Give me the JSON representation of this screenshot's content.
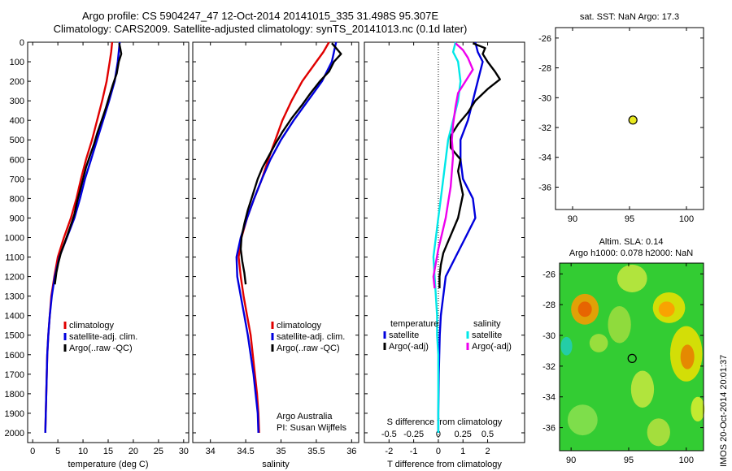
{
  "header": {
    "title_line1": "Argo profile: CS 5904247_47 12-Oct-2014 20141015_335 31.498S 95.307E",
    "title_line2": "Climatology: CARS2009. Satellite-adjusted climatology: synTS_20141013.nc (0.1d later)"
  },
  "side_label": "IMOS 20-Oct-2014 20:01:37",
  "colors": {
    "climatology": "#e00000",
    "satellite": "#0000dd",
    "argo": "#000000",
    "cyan": "#00e8e8",
    "magenta": "#ee00ee",
    "marker": "#e8e820"
  },
  "chart_data": [
    {
      "id": "temperature",
      "type": "line",
      "xlabel": "temperature (deg C)",
      "ylabel": "",
      "xlim": [
        -1,
        31
      ],
      "ylim": [
        2050,
        0
      ],
      "xticks": [
        0,
        5,
        10,
        15,
        20,
        25,
        30
      ],
      "yticks": [
        0,
        100,
        200,
        300,
        400,
        500,
        600,
        700,
        800,
        900,
        1000,
        1100,
        1200,
        1300,
        1400,
        1500,
        1600,
        1700,
        1800,
        1900,
        2000
      ],
      "legend": [
        "climatology",
        "satellite-adj. clim.",
        "Argo(..raw -QC)"
      ],
      "legend_position": "lower-center",
      "series": [
        {
          "name": "climatology",
          "color": "#e00000",
          "points": [
            [
              15.8,
              0
            ],
            [
              15.6,
              50
            ],
            [
              15.3,
              100
            ],
            [
              14.7,
              200
            ],
            [
              13.8,
              300
            ],
            [
              12.8,
              400
            ],
            [
              11.8,
              500
            ],
            [
              10.6,
              600
            ],
            [
              9.6,
              700
            ],
            [
              8.7,
              800
            ],
            [
              7.6,
              900
            ],
            [
              6.2,
              1000
            ],
            [
              5.0,
              1100
            ],
            [
              4.3,
              1200
            ],
            [
              3.7,
              1300
            ],
            [
              3.4,
              1400
            ],
            [
              3.1,
              1500
            ],
            [
              2.9,
              1600
            ],
            [
              2.8,
              1700
            ],
            [
              2.7,
              1800
            ],
            [
              2.6,
              1900
            ],
            [
              2.5,
              2000
            ]
          ]
        },
        {
          "name": "satellite-adj. clim.",
          "color": "#0000dd",
          "points": [
            [
              17.3,
              0
            ],
            [
              17.1,
              50
            ],
            [
              16.9,
              100
            ],
            [
              16.3,
              200
            ],
            [
              15.2,
              300
            ],
            [
              14.0,
              400
            ],
            [
              12.8,
              500
            ],
            [
              11.6,
              600
            ],
            [
              10.4,
              700
            ],
            [
              9.4,
              800
            ],
            [
              8.3,
              900
            ],
            [
              6.8,
              1000
            ],
            [
              5.3,
              1100
            ],
            [
              4.4,
              1200
            ],
            [
              3.8,
              1300
            ],
            [
              3.4,
              1400
            ],
            [
              3.1,
              1500
            ],
            [
              2.9,
              1600
            ],
            [
              2.8,
              1700
            ],
            [
              2.7,
              1800
            ],
            [
              2.6,
              1900
            ],
            [
              2.5,
              2000
            ]
          ]
        },
        {
          "name": "Argo(..raw -QC)",
          "color": "#000000",
          "points": [
            [
              17.2,
              5
            ],
            [
              17.4,
              30
            ],
            [
              17.6,
              60
            ],
            [
              17.1,
              100
            ],
            [
              16.7,
              160
            ],
            [
              15.9,
              220
            ],
            [
              15.2,
              280
            ],
            [
              14.5,
              340
            ],
            [
              13.7,
              400
            ],
            [
              12.9,
              460
            ],
            [
              12.2,
              520
            ],
            [
              11.4,
              580
            ],
            [
              10.6,
              640
            ],
            [
              10.0,
              700
            ],
            [
              9.4,
              760
            ],
            [
              8.8,
              820
            ],
            [
              8.3,
              880
            ],
            [
              7.8,
              920
            ],
            [
              7.0,
              980
            ],
            [
              6.3,
              1030
            ],
            [
              5.6,
              1080
            ],
            [
              5.1,
              1130
            ],
            [
              4.7,
              1180
            ],
            [
              4.4,
              1240
            ]
          ]
        }
      ]
    },
    {
      "id": "salinity",
      "type": "line",
      "xlabel": "salinity",
      "ylabel": "",
      "xlim": [
        33.75,
        36.1
      ],
      "ylim": [
        2050,
        0
      ],
      "xticks": [
        34,
        34.5,
        35,
        35.5,
        36
      ],
      "yticks": [
        0,
        100,
        200,
        300,
        400,
        500,
        600,
        700,
        800,
        900,
        1000,
        1100,
        1200,
        1300,
        1400,
        1500,
        1600,
        1700,
        1800,
        1900,
        2000
      ],
      "legend": [
        "climatology",
        "satellite-adj. clim.",
        "Argo(..raw -QC)"
      ],
      "legend_position": "lower-center",
      "annotation": [
        "Argo Australia",
        "PI: Susan Wijffels"
      ],
      "series": [
        {
          "name": "climatology",
          "color": "#e00000",
          "points": [
            [
              35.68,
              0
            ],
            [
              35.6,
              50
            ],
            [
              35.5,
              100
            ],
            [
              35.3,
              200
            ],
            [
              35.15,
              300
            ],
            [
              35.02,
              400
            ],
            [
              34.92,
              500
            ],
            [
              34.82,
              600
            ],
            [
              34.73,
              700
            ],
            [
              34.62,
              800
            ],
            [
              34.52,
              900
            ],
            [
              34.44,
              1000
            ],
            [
              34.4,
              1100
            ],
            [
              34.43,
              1200
            ],
            [
              34.47,
              1300
            ],
            [
              34.52,
              1400
            ],
            [
              34.57,
              1500
            ],
            [
              34.6,
              1600
            ],
            [
              34.63,
              1700
            ],
            [
              34.66,
              1800
            ],
            [
              34.68,
              1900
            ],
            [
              34.69,
              2000
            ]
          ]
        },
        {
          "name": "satellite-adj. clim.",
          "color": "#0000dd",
          "points": [
            [
              35.78,
              0
            ],
            [
              35.75,
              50
            ],
            [
              35.72,
              100
            ],
            [
              35.58,
              200
            ],
            [
              35.38,
              300
            ],
            [
              35.18,
              400
            ],
            [
              35.0,
              500
            ],
            [
              34.85,
              600
            ],
            [
              34.73,
              700
            ],
            [
              34.62,
              800
            ],
            [
              34.52,
              900
            ],
            [
              34.43,
              1000
            ],
            [
              34.37,
              1100
            ],
            [
              34.38,
              1200
            ],
            [
              34.43,
              1300
            ],
            [
              34.48,
              1400
            ],
            [
              34.53,
              1500
            ],
            [
              34.57,
              1600
            ],
            [
              34.61,
              1700
            ],
            [
              34.64,
              1800
            ],
            [
              34.67,
              1900
            ],
            [
              34.68,
              2000
            ]
          ]
        },
        {
          "name": "Argo(..raw -QC)",
          "color": "#000000",
          "points": [
            [
              35.72,
              5
            ],
            [
              35.78,
              30
            ],
            [
              35.85,
              60
            ],
            [
              35.75,
              100
            ],
            [
              35.68,
              150
            ],
            [
              35.55,
              200
            ],
            [
              35.42,
              260
            ],
            [
              35.3,
              320
            ],
            [
              35.15,
              390
            ],
            [
              35.02,
              460
            ],
            [
              34.92,
              520
            ],
            [
              34.83,
              580
            ],
            [
              34.74,
              640
            ],
            [
              34.67,
              700
            ],
            [
              34.6,
              780
            ],
            [
              34.53,
              860
            ],
            [
              34.48,
              930
            ],
            [
              34.44,
              1000
            ],
            [
              34.43,
              1060
            ],
            [
              34.45,
              1120
            ],
            [
              34.48,
              1180
            ],
            [
              34.5,
              1240
            ]
          ]
        }
      ]
    },
    {
      "id": "difference",
      "type": "line",
      "xlabel": "T difference from climatology",
      "xlabel_top": "S difference from climatology",
      "xlim": [
        -3,
        3.5
      ],
      "ylim": [
        2050,
        0
      ],
      "xticks": [
        -2,
        -1,
        0,
        1,
        2
      ],
      "xticks_s": [
        -0.5,
        -0.25,
        0,
        0.25,
        0.5
      ],
      "yticks": [
        0,
        100,
        200,
        300,
        400,
        500,
        600,
        700,
        800,
        900,
        1000,
        1100,
        1200,
        1300,
        1400,
        1500,
        1600,
        1700,
        1800,
        1900,
        2000
      ],
      "legend_headers": [
        "temperature",
        "salinity"
      ],
      "legend": [
        "satellite",
        "Argo(-adj)",
        "satellite",
        "Argo(-adj)"
      ],
      "series": [
        {
          "name": "satellite",
          "group": "temperature",
          "color": "#0000dd",
          "points": [
            [
              1.5,
              0
            ],
            [
              1.6,
              50
            ],
            [
              1.8,
              100
            ],
            [
              1.6,
              200
            ],
            [
              1.4,
              300
            ],
            [
              1.2,
              400
            ],
            [
              0.9,
              500
            ],
            [
              0.9,
              600
            ],
            [
              1.0,
              700
            ],
            [
              1.4,
              800
            ],
            [
              1.5,
              900
            ],
            [
              1.1,
              1000
            ],
            [
              0.7,
              1100
            ],
            [
              0.3,
              1200
            ],
            [
              0.2,
              1300
            ],
            [
              0.1,
              1400
            ],
            [
              0.06,
              1500
            ],
            [
              0.04,
              1600
            ],
            [
              0.02,
              1700
            ],
            [
              0.01,
              1800
            ],
            [
              0.0,
              1900
            ],
            [
              0.0,
              2000
            ]
          ]
        },
        {
          "name": "Argo(-adj)",
          "group": "temperature",
          "color": "#000000",
          "points": [
            [
              1.4,
              5
            ],
            [
              1.9,
              30
            ],
            [
              1.8,
              60
            ],
            [
              2.0,
              100
            ],
            [
              2.3,
              150
            ],
            [
              2.5,
              190
            ],
            [
              2.0,
              240
            ],
            [
              1.5,
              300
            ],
            [
              1.2,
              360
            ],
            [
              0.8,
              420
            ],
            [
              0.5,
              480
            ],
            [
              0.5,
              540
            ],
            [
              0.9,
              600
            ],
            [
              0.8,
              660
            ],
            [
              0.9,
              720
            ],
            [
              1.0,
              780
            ],
            [
              0.9,
              840
            ],
            [
              0.8,
              900
            ],
            [
              0.6,
              960
            ],
            [
              0.4,
              1020
            ],
            [
              0.2,
              1080
            ],
            [
              0.1,
              1140
            ],
            [
              0.05,
              1200
            ],
            [
              0.05,
              1260
            ]
          ]
        },
        {
          "name": "satellite",
          "group": "salinity",
          "color": "#00e8e8",
          "points": [
            [
              0.7,
              0
            ],
            [
              0.6,
              50
            ],
            [
              0.8,
              100
            ],
            [
              0.9,
              200
            ],
            [
              0.8,
              300
            ],
            [
              0.6,
              400
            ],
            [
              0.4,
              500
            ],
            [
              0.3,
              600
            ],
            [
              0.2,
              700
            ],
            [
              0.1,
              800
            ],
            [
              0.0,
              900
            ],
            [
              -0.1,
              1000
            ],
            [
              -0.2,
              1100
            ],
            [
              -0.15,
              1200
            ],
            [
              -0.1,
              1300
            ],
            [
              -0.05,
              1400
            ],
            [
              -0.05,
              1500
            ],
            [
              0.0,
              1600
            ],
            [
              0.0,
              1700
            ],
            [
              0.0,
              1800
            ],
            [
              0.0,
              1900
            ],
            [
              0.0,
              2000
            ]
          ]
        },
        {
          "name": "Argo(-adj)",
          "group": "salinity",
          "color": "#ee00ee",
          "points": [
            [
              0.7,
              5
            ],
            [
              1.0,
              40
            ],
            [
              1.2,
              80
            ],
            [
              1.4,
              140
            ],
            [
              1.1,
              200
            ],
            [
              0.8,
              260
            ],
            [
              0.7,
              330
            ],
            [
              0.6,
              420
            ],
            [
              0.55,
              500
            ],
            [
              0.6,
              580
            ],
            [
              0.55,
              660
            ],
            [
              0.5,
              740
            ],
            [
              0.4,
              820
            ],
            [
              0.3,
              900
            ],
            [
              0.15,
              980
            ],
            [
              0.0,
              1060
            ],
            [
              -0.1,
              1130
            ],
            [
              -0.2,
              1200
            ],
            [
              -0.15,
              1260
            ]
          ]
        }
      ]
    }
  ],
  "sst_map": {
    "title": "sat. SST: NaN Argo: 17.3",
    "xticks": [
      90,
      95,
      100
    ],
    "yticks": [
      -26,
      -28,
      -30,
      -32,
      -34,
      -36
    ],
    "xlim": [
      88.5,
      101.5
    ],
    "ylim": [
      -37.5,
      -25.3
    ],
    "marker": [
      95.3,
      -31.5
    ]
  },
  "sla_map": {
    "title_line1": "Altim. SLA: 0.14",
    "title_line2": "Argo h1000: 0.078 h2000: NaN",
    "xticks": [
      90,
      95,
      100
    ],
    "yticks": [
      -26,
      -28,
      -30,
      -32,
      -34,
      -36
    ],
    "xlim": [
      89,
      101.5
    ],
    "ylim": [
      -37.5,
      -25.3
    ],
    "marker": [
      95.3,
      -31.5
    ]
  }
}
